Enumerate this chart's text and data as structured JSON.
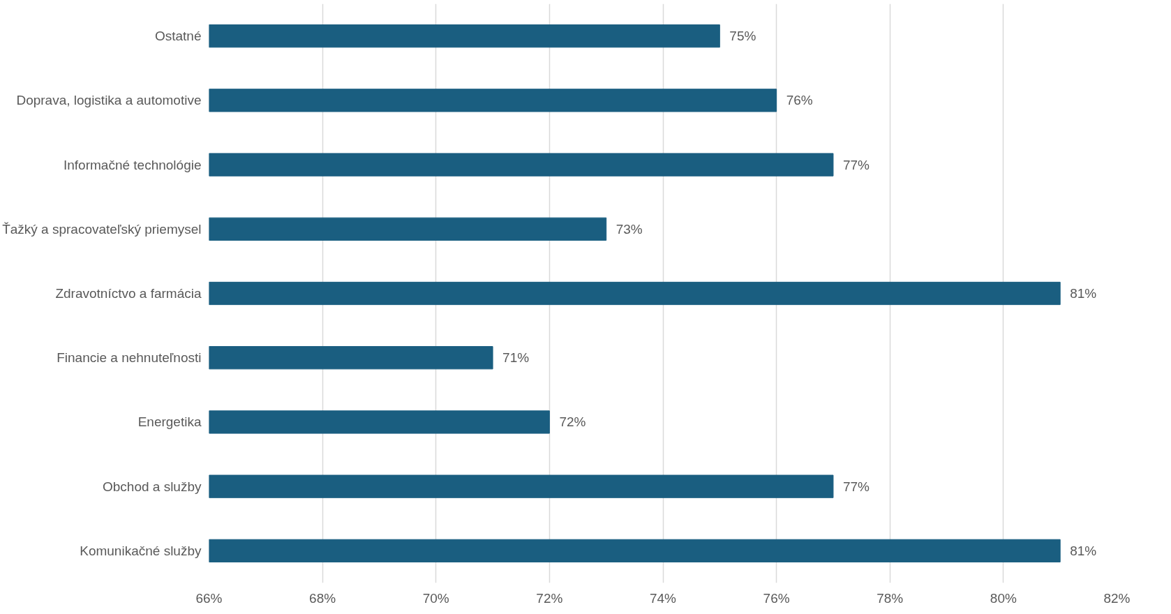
{
  "chart_data": {
    "type": "bar",
    "orientation": "horizontal",
    "categories": [
      "Ostatné",
      "Doprava, logistika a automotive",
      "Informačné technológie",
      "Ťažký a spracovateľský priemysel",
      "Zdravotníctvo a farmácia",
      "Financie a nehnuteľnosti",
      "Energetika",
      "Obchod a služby",
      "Komunikačné služby"
    ],
    "values": [
      75,
      76,
      77,
      73,
      81,
      71,
      72,
      77,
      81
    ],
    "value_labels": [
      "75%",
      "76%",
      "77%",
      "73%",
      "81%",
      "71%",
      "72%",
      "77%",
      "81%"
    ],
    "color": "#1a5e80",
    "xlim": [
      66,
      82
    ],
    "xticks": [
      {
        "value": 66,
        "label": "66%"
      },
      {
        "value": 68,
        "label": "68%"
      },
      {
        "value": 70,
        "label": "70%"
      },
      {
        "value": 72,
        "label": "72%"
      },
      {
        "value": 74,
        "label": "74%"
      },
      {
        "value": 76,
        "label": "76%"
      },
      {
        "value": 78,
        "label": "78%"
      },
      {
        "value": 80,
        "label": "80%"
      },
      {
        "value": 82,
        "label": "82%"
      }
    ],
    "grid": "x"
  }
}
